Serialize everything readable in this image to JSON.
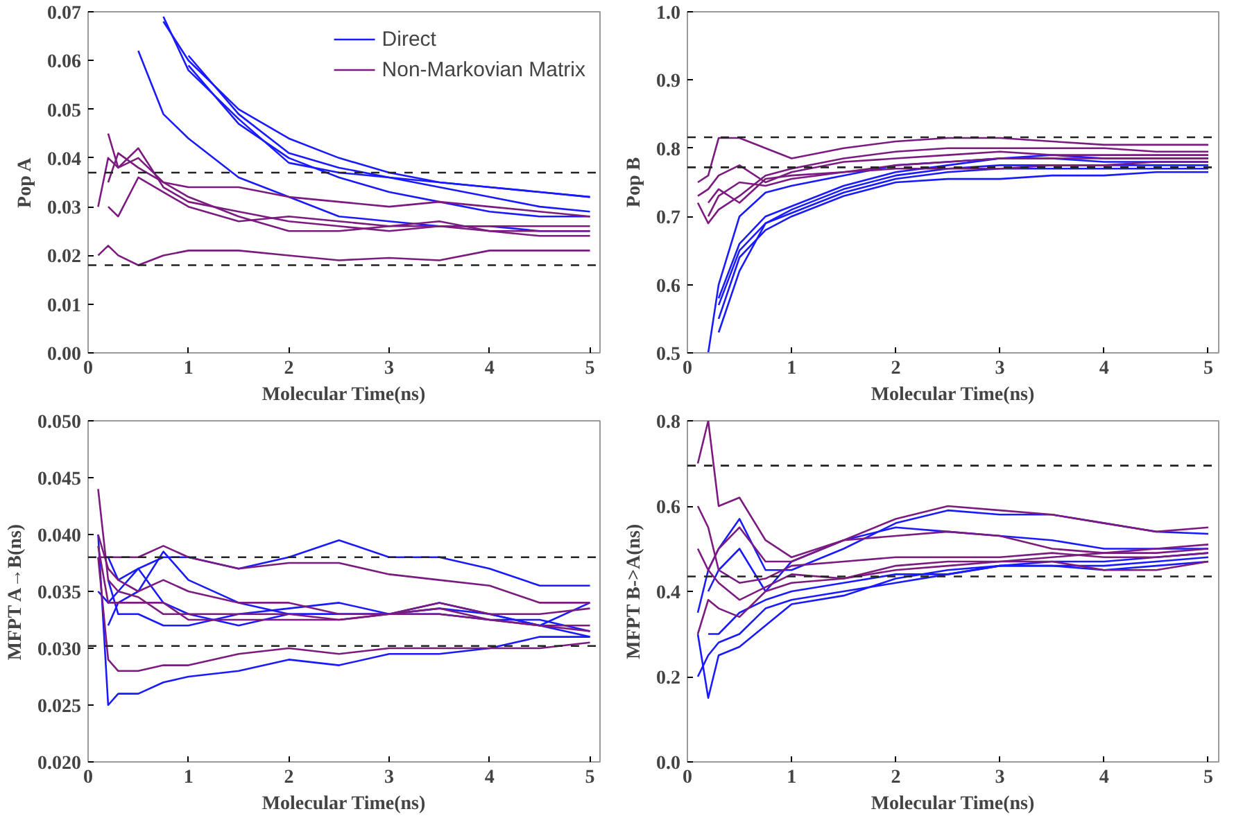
{
  "chart_data": [
    {
      "type": "line",
      "xlabel": "Molecular Time(ns)",
      "ylabel": "Pop A",
      "grid": false,
      "legend": "top right",
      "xlim": [
        0,
        5.1
      ],
      "xticks": [
        0,
        1,
        2,
        3,
        4,
        5
      ],
      "ylim": [
        0,
        0.07
      ],
      "yticks": [
        {
          "value": 0,
          "label": "0.00"
        },
        {
          "value": 0.01,
          "label": "0.01"
        },
        {
          "value": 0.02,
          "label": "0.02"
        },
        {
          "value": 0.03,
          "label": "0.03"
        },
        {
          "value": 0.04,
          "label": "0.04"
        },
        {
          "value": 0.05,
          "label": "0.05"
        },
        {
          "value": 0.06,
          "label": "0.06"
        },
        {
          "value": 0.07,
          "label": "0.07"
        }
      ],
      "x": [
        0.1,
        0.2,
        0.3,
        0.5,
        0.75,
        1,
        1.5,
        2,
        2.5,
        3,
        3.5,
        4,
        4.5,
        5
      ],
      "ref_lines": [
        {
          "axis": "y",
          "value": 0.037,
          "color": "#222222",
          "line_style": "dashed"
        },
        {
          "axis": "y",
          "value": 0.018,
          "color": "#222222",
          "line_style": "dashed"
        }
      ],
      "series": [
        {
          "name": "Direct",
          "color": "#1a1aff",
          "values": [
            null,
            null,
            null,
            0.062,
            0.049,
            0.044,
            0.036,
            0.032,
            0.028,
            0.027,
            0.026,
            0.026,
            0.025,
            0.025
          ]
        },
        {
          "color": "#1a1aff",
          "values": [
            null,
            null,
            null,
            null,
            0.068,
            0.06,
            0.05,
            0.044,
            0.04,
            0.037,
            0.035,
            0.034,
            0.033,
            0.032
          ]
        },
        {
          "color": "#1a1aff",
          "values": [
            null,
            null,
            null,
            null,
            0.069,
            0.058,
            0.048,
            0.039,
            0.037,
            0.036,
            0.034,
            0.032,
            0.03,
            0.029
          ]
        },
        {
          "color": "#1a1aff",
          "values": [
            null,
            null,
            null,
            null,
            null,
            0.061,
            0.049,
            0.041,
            0.038,
            0.036,
            0.035,
            0.034,
            0.033,
            0.032
          ]
        },
        {
          "color": "#1a1aff",
          "values": [
            null,
            null,
            null,
            null,
            null,
            0.059,
            0.047,
            0.04,
            0.036,
            0.033,
            0.031,
            0.029,
            0.028,
            0.028
          ]
        },
        {
          "name": "Non-Markovian Matrix",
          "color": "#7b1a7f",
          "values": [
            0.03,
            0.04,
            0.038,
            0.04,
            0.035,
            0.034,
            0.034,
            0.032,
            0.031,
            0.03,
            0.031,
            0.03,
            0.029,
            0.028
          ]
        },
        {
          "color": "#7b1a7f",
          "values": [
            0.02,
            0.022,
            0.02,
            0.018,
            0.02,
            0.021,
            0.021,
            0.02,
            0.019,
            0.0195,
            0.019,
            0.021,
            0.021,
            0.021
          ]
        },
        {
          "color": "#7b1a7f",
          "values": [
            null,
            0.045,
            0.038,
            0.042,
            0.034,
            0.031,
            0.029,
            0.027,
            0.026,
            0.025,
            0.026,
            0.025,
            0.025,
            0.025
          ]
        },
        {
          "color": "#7b1a7f",
          "values": [
            null,
            0.03,
            0.028,
            0.036,
            0.033,
            0.03,
            0.027,
            0.028,
            0.027,
            0.026,
            0.026,
            0.026,
            0.026,
            0.026
          ]
        },
        {
          "color": "#7b1a7f",
          "values": [
            null,
            0.035,
            0.041,
            0.038,
            0.035,
            0.032,
            0.028,
            0.025,
            0.025,
            0.026,
            0.027,
            0.025,
            0.024,
            0.024
          ]
        }
      ]
    },
    {
      "type": "line",
      "xlabel": "Molecular Time(ns)",
      "ylabel": "Pop B",
      "grid": false,
      "xlim": [
        0,
        5.1
      ],
      "xticks": [
        0,
        1,
        2,
        3,
        4,
        5
      ],
      "ylim": [
        0.5,
        1.0
      ],
      "yticks": [
        {
          "value": 0.5,
          "label": "0.5"
        },
        {
          "value": 0.6,
          "label": "0.6"
        },
        {
          "value": 0.7,
          "label": "0.7"
        },
        {
          "value": 0.8,
          "label": "0.8"
        },
        {
          "value": 0.9,
          "label": "0.9"
        },
        {
          "value": 1.0,
          "label": "1.0"
        }
      ],
      "x": [
        0.1,
        0.2,
        0.3,
        0.5,
        0.75,
        1,
        1.5,
        2,
        2.5,
        3,
        3.5,
        4,
        4.5,
        5
      ],
      "ref_lines": [
        {
          "axis": "y",
          "value": 0.816,
          "color": "#222222",
          "line_style": "dashed"
        },
        {
          "axis": "y",
          "value": 0.772,
          "color": "#222222",
          "line_style": "dashed"
        }
      ],
      "series": [
        {
          "color": "#1a1aff",
          "values": [
            null,
            0.5,
            0.6,
            0.7,
            0.735,
            0.745,
            0.76,
            0.775,
            0.78,
            0.785,
            0.785,
            0.78,
            0.78,
            0.78
          ]
        },
        {
          "color": "#1a1aff",
          "values": [
            null,
            null,
            0.55,
            0.64,
            0.68,
            0.7,
            0.73,
            0.75,
            0.755,
            0.755,
            0.76,
            0.76,
            0.765,
            0.765
          ]
        },
        {
          "color": "#1a1aff",
          "values": [
            null,
            null,
            0.57,
            0.65,
            0.69,
            0.71,
            0.74,
            0.76,
            0.77,
            0.775,
            0.775,
            0.775,
            0.775,
            0.775
          ]
        },
        {
          "color": "#1a1aff",
          "values": [
            null,
            null,
            0.58,
            0.66,
            0.7,
            0.715,
            0.745,
            0.765,
            0.775,
            0.785,
            0.79,
            0.785,
            0.785,
            0.785
          ]
        },
        {
          "color": "#1a1aff",
          "values": [
            null,
            null,
            0.53,
            0.62,
            0.69,
            0.705,
            0.735,
            0.755,
            0.765,
            0.77,
            0.77,
            0.77,
            0.77,
            0.77
          ]
        },
        {
          "color": "#7b1a7f",
          "values": [
            0.75,
            0.76,
            0.815,
            0.815,
            0.8,
            0.785,
            0.8,
            0.81,
            0.815,
            0.815,
            0.81,
            0.805,
            0.805,
            0.805
          ]
        },
        {
          "color": "#7b1a7f",
          "values": [
            0.72,
            0.69,
            0.71,
            0.73,
            0.76,
            0.77,
            0.785,
            0.795,
            0.8,
            0.8,
            0.8,
            0.8,
            0.795,
            0.795
          ]
        },
        {
          "color": "#7b1a7f",
          "values": [
            0.73,
            0.74,
            0.76,
            0.775,
            0.75,
            0.765,
            0.78,
            0.785,
            0.79,
            0.795,
            0.79,
            0.79,
            0.79,
            0.79
          ]
        },
        {
          "color": "#7b1a7f",
          "values": [
            null,
            0.72,
            0.74,
            0.72,
            0.755,
            0.76,
            0.765,
            0.775,
            0.78,
            0.785,
            0.785,
            0.785,
            0.785,
            0.785
          ]
        },
        {
          "color": "#7b1a7f",
          "values": [
            null,
            0.7,
            0.73,
            0.75,
            0.745,
            0.755,
            0.765,
            0.77,
            0.77,
            0.77,
            0.775,
            0.775,
            0.78,
            0.78
          ]
        }
      ]
    },
    {
      "type": "line",
      "xlabel": "Molecular Time(ns)",
      "ylabel": "MFPT A→B(ns)",
      "grid": false,
      "xlim": [
        0,
        5.1
      ],
      "xticks": [
        0,
        1,
        2,
        3,
        4,
        5
      ],
      "ylim": [
        0.02,
        0.05
      ],
      "yticks": [
        {
          "value": 0.02,
          "label": "0.020"
        },
        {
          "value": 0.025,
          "label": "0.025"
        },
        {
          "value": 0.03,
          "label": "0.030"
        },
        {
          "value": 0.035,
          "label": "0.035"
        },
        {
          "value": 0.04,
          "label": "0.040"
        },
        {
          "value": 0.045,
          "label": "0.045"
        },
        {
          "value": 0.05,
          "label": "0.050"
        }
      ],
      "x": [
        0.1,
        0.2,
        0.3,
        0.5,
        0.75,
        1,
        1.5,
        2,
        2.5,
        3,
        3.5,
        4,
        4.5,
        5
      ],
      "ref_lines": [
        {
          "axis": "y",
          "value": 0.038,
          "color": "#222222",
          "line_style": "dashed"
        },
        {
          "axis": "y",
          "value": 0.0302,
          "color": "#222222",
          "line_style": "dashed"
        }
      ],
      "series": [
        {
          "color": "#1a1aff",
          "values": [
            0.04,
            0.025,
            0.026,
            0.026,
            0.027,
            0.0275,
            0.028,
            0.029,
            0.0285,
            0.0295,
            0.0295,
            0.03,
            0.031,
            0.031
          ]
        },
        {
          "color": "#1a1aff",
          "values": [
            0.035,
            0.034,
            0.035,
            0.037,
            0.038,
            0.038,
            0.037,
            0.038,
            0.0395,
            0.038,
            0.038,
            0.037,
            0.0355,
            0.0355
          ]
        },
        {
          "color": "#1a1aff",
          "values": [
            null,
            0.032,
            0.034,
            0.035,
            0.0385,
            0.036,
            0.034,
            0.033,
            0.033,
            0.033,
            0.0335,
            0.033,
            0.032,
            0.034
          ]
        },
        {
          "color": "#1a1aff",
          "values": [
            null,
            0.036,
            0.033,
            0.033,
            0.032,
            0.032,
            0.033,
            0.0335,
            0.034,
            0.033,
            0.033,
            0.0325,
            0.0325,
            0.0315
          ]
        },
        {
          "color": "#1a1aff",
          "values": [
            null,
            0.038,
            0.036,
            0.037,
            0.034,
            0.033,
            0.032,
            0.033,
            0.033,
            0.033,
            0.034,
            0.033,
            0.032,
            0.031
          ]
        },
        {
          "color": "#7b1a7f",
          "values": [
            0.038,
            0.029,
            0.028,
            0.028,
            0.0285,
            0.0285,
            0.0295,
            0.03,
            0.0295,
            0.03,
            0.03,
            0.03,
            0.03,
            0.0305
          ]
        },
        {
          "color": "#7b1a7f",
          "values": [
            0.038,
            0.038,
            0.038,
            0.038,
            0.039,
            0.038,
            0.037,
            0.0375,
            0.0375,
            0.0365,
            0.036,
            0.0355,
            0.034,
            0.034
          ]
        },
        {
          "color": "#7b1a7f",
          "values": [
            0.04,
            0.037,
            0.036,
            0.035,
            0.036,
            0.035,
            0.034,
            0.034,
            0.033,
            0.033,
            0.0335,
            0.0325,
            0.032,
            0.0315
          ]
        },
        {
          "color": "#7b1a7f",
          "values": [
            0.044,
            0.036,
            0.035,
            0.0345,
            0.033,
            0.033,
            0.033,
            0.033,
            0.0325,
            0.033,
            0.034,
            0.033,
            0.033,
            0.0335
          ]
        },
        {
          "color": "#7b1a7f",
          "values": [
            0.039,
            0.034,
            0.034,
            0.034,
            0.034,
            0.0325,
            0.0325,
            0.0325,
            0.0325,
            0.033,
            0.033,
            0.0325,
            0.032,
            0.032
          ]
        }
      ]
    },
    {
      "type": "line",
      "xlabel": "Molecular Time(ns)",
      "ylabel": "MFPT B->A(ns)",
      "grid": false,
      "xlim": [
        0,
        5.1
      ],
      "xticks": [
        0,
        1,
        2,
        3,
        4,
        5
      ],
      "ylim": [
        0,
        0.8
      ],
      "yticks": [
        {
          "value": 0,
          "label": "0.0"
        },
        {
          "value": 0.2,
          "label": "0.2"
        },
        {
          "value": 0.4,
          "label": "0.4"
        },
        {
          "value": 0.6,
          "label": "0.6"
        },
        {
          "value": 0.8,
          "label": "0.8"
        }
      ],
      "x": [
        0.1,
        0.2,
        0.3,
        0.5,
        0.75,
        1,
        1.5,
        2,
        2.5,
        3,
        3.5,
        4,
        4.5,
        5
      ],
      "ref_lines": [
        {
          "axis": "y",
          "value": 0.695,
          "color": "#222222",
          "line_style": "dashed"
        },
        {
          "axis": "y",
          "value": 0.435,
          "color": "#222222",
          "line_style": "dashed"
        }
      ],
      "series": [
        {
          "color": "#1a1aff",
          "values": [
            0.3,
            0.15,
            0.25,
            0.27,
            0.32,
            0.37,
            0.39,
            0.43,
            0.45,
            0.46,
            0.46,
            0.45,
            0.46,
            0.47
          ]
        },
        {
          "color": "#1a1aff",
          "values": [
            0.35,
            0.45,
            0.5,
            0.57,
            0.45,
            0.45,
            0.5,
            0.56,
            0.59,
            0.58,
            0.58,
            0.56,
            0.54,
            0.535
          ]
        },
        {
          "color": "#1a1aff",
          "values": [
            null,
            0.3,
            0.3,
            0.35,
            0.38,
            0.4,
            0.42,
            0.44,
            0.44,
            0.46,
            0.47,
            0.47,
            0.48,
            0.49
          ]
        },
        {
          "color": "#1a1aff",
          "values": [
            null,
            0.4,
            0.45,
            0.5,
            0.4,
            0.47,
            0.52,
            0.55,
            0.54,
            0.53,
            0.52,
            0.5,
            0.5,
            0.5
          ]
        },
        {
          "color": "#1a1aff",
          "values": [
            0.2,
            0.25,
            0.28,
            0.3,
            0.36,
            0.38,
            0.4,
            0.42,
            0.44,
            0.46,
            0.46,
            0.46,
            0.47,
            0.48
          ]
        },
        {
          "color": "#7b1a7f",
          "values": [
            0.7,
            0.8,
            0.6,
            0.62,
            0.52,
            0.48,
            0.52,
            0.57,
            0.6,
            0.59,
            0.58,
            0.56,
            0.54,
            0.55
          ]
        },
        {
          "color": "#7b1a7f",
          "values": [
            0.5,
            0.45,
            0.5,
            0.55,
            0.47,
            0.47,
            0.52,
            0.53,
            0.54,
            0.53,
            0.5,
            0.49,
            0.49,
            0.5
          ]
        },
        {
          "color": "#7b1a7f",
          "values": [
            0.3,
            0.38,
            0.36,
            0.34,
            0.4,
            0.42,
            0.43,
            0.46,
            0.47,
            0.47,
            0.48,
            0.49,
            0.5,
            0.51
          ]
        },
        {
          "color": "#7b1a7f",
          "values": [
            null,
            0.45,
            0.42,
            0.38,
            0.41,
            0.44,
            0.43,
            0.45,
            0.46,
            0.47,
            0.47,
            0.45,
            0.45,
            0.47
          ]
        },
        {
          "color": "#7b1a7f",
          "values": [
            0.6,
            0.55,
            0.45,
            0.42,
            0.43,
            0.46,
            0.47,
            0.48,
            0.48,
            0.48,
            0.49,
            0.48,
            0.48,
            0.49
          ]
        }
      ]
    }
  ]
}
